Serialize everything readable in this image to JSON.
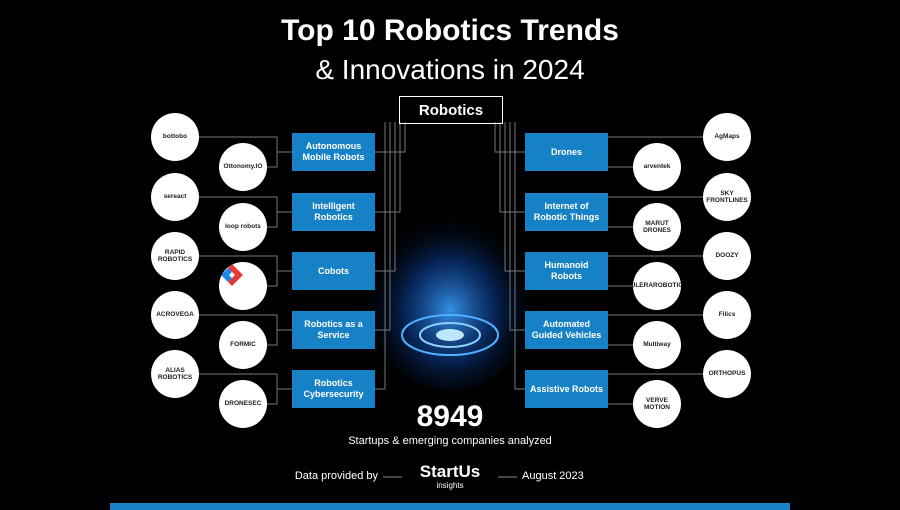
{
  "header": {
    "title": "Top 10 Robotics Trends",
    "subtitle": "& Innovations in 2024"
  },
  "center": {
    "label": "Robotics"
  },
  "left_trends": [
    {
      "label": "Autonomous Mobile Robots",
      "startups": [
        "bottobo",
        "Ottonomy.IO"
      ]
    },
    {
      "label": "Intelligent Robotics",
      "startups": [
        "sereact",
        "loop robots"
      ]
    },
    {
      "label": "Cobots",
      "startups": [
        "RAPID ROBOTICS"
      ]
    },
    {
      "label": "Robotics as a Service",
      "startups": [
        "ACROVEGA",
        "FORMIC"
      ]
    },
    {
      "label": "Robotics Cybersecurity",
      "startups": [
        "ALIAS ROBOTICS",
        "DRONESEC"
      ]
    }
  ],
  "right_trends": [
    {
      "label": "Drones",
      "startups": [
        "AgMaps",
        "arventek"
      ]
    },
    {
      "label": "Internet of Robotic Things",
      "startups": [
        "SKY FRONTLINES",
        "MARUT DRONES"
      ]
    },
    {
      "label": "Humanoid Robots",
      "startups": [
        "DOOZY",
        "FULERAROBOTICS"
      ]
    },
    {
      "label": "Automated Guided Vehicles",
      "startups": [
        "Filics",
        "Multiway"
      ]
    },
    {
      "label": "Assistive Robots",
      "startups": [
        "ORTHOPUS",
        "VERVE MOTION"
      ]
    }
  ],
  "stat": {
    "value": "8949",
    "caption": "Startups & emerging companies analyzed"
  },
  "footer": {
    "provided": "Data provided by",
    "brand": "StartUs",
    "brand_sub": "insights",
    "date": "August 2023"
  }
}
